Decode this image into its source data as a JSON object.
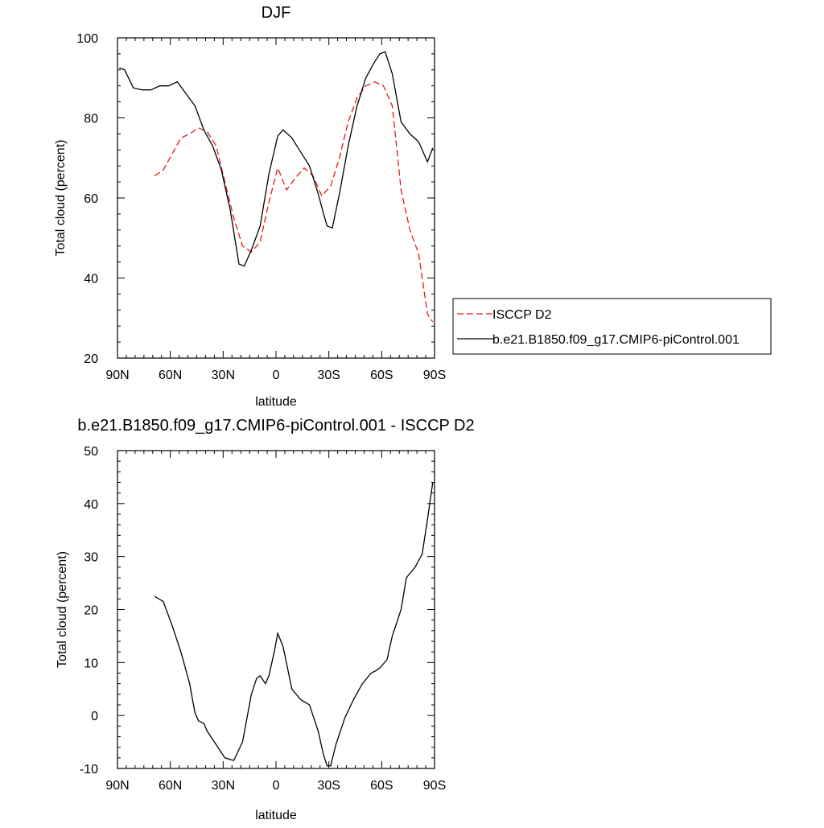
{
  "chart_data": [
    {
      "type": "line",
      "title": "DJF",
      "xlabel": "latitude",
      "ylabel": "Total cloud (percent)",
      "xlim": [
        -90,
        90
      ],
      "ylim": [
        20,
        100
      ],
      "x_ticks": [
        -90,
        -60,
        -30,
        0,
        30,
        60,
        90
      ],
      "x_tick_labels": [
        "90N",
        "60N",
        "30N",
        "0",
        "30S",
        "60S",
        "90S"
      ],
      "y_ticks": [
        20,
        40,
        60,
        80,
        100
      ],
      "y_tick_labels": [
        "20",
        "40",
        "60",
        "80",
        "100"
      ],
      "legend_position": "right",
      "series": [
        {
          "name": "ISCCP D2",
          "color": "#e41a1c",
          "dash": "dashed",
          "x": [
            -69,
            -64,
            -59,
            -54,
            -49,
            -44,
            -39,
            -34,
            -29,
            -24,
            -19,
            -14,
            -9,
            -4,
            1,
            6,
            11,
            16,
            21,
            26,
            31,
            36,
            41,
            46,
            51,
            56,
            61,
            66,
            71,
            76,
            81,
            86,
            89
          ],
          "y": [
            65.5,
            67,
            71,
            75,
            76,
            77.5,
            76.5,
            73,
            64,
            55,
            48,
            46.5,
            49,
            59,
            67.5,
            62,
            65,
            67.5,
            65.5,
            60.5,
            63,
            70,
            79,
            85,
            88,
            89,
            88,
            83,
            62,
            52,
            46,
            31,
            29
          ]
        },
        {
          "name": "b.e21.B1850.f09_g17.CMIP6-piControl.001",
          "color": "#000000",
          "dash": "solid",
          "x": [
            -89,
            -86,
            -81,
            -76,
            -71,
            -66,
            -61,
            -56,
            -51,
            -46,
            -41,
            -36,
            -31,
            -26,
            -21,
            -18,
            -14,
            -9,
            -4,
            1,
            4,
            9,
            14,
            19,
            24,
            27,
            29,
            32,
            36,
            41,
            46,
            51,
            56,
            59,
            62,
            66,
            71,
            76,
            81,
            86,
            89
          ],
          "y": [
            92.5,
            92,
            87.5,
            87,
            87,
            88,
            88,
            89,
            86,
            83,
            77,
            73,
            67,
            57,
            43.5,
            43,
            47,
            53,
            66,
            75.5,
            77,
            75,
            71.5,
            68,
            61,
            56,
            53,
            52.5,
            61,
            73,
            83,
            90,
            94,
            96,
            96.5,
            91,
            79,
            76,
            74,
            69,
            72.5
          ]
        }
      ]
    },
    {
      "type": "line",
      "title": "b.e21.B1850.f09_g17.CMIP6-piControl.001 - ISCCP D2",
      "xlabel": "latitude",
      "ylabel": "Total cloud (percent)",
      "xlim": [
        -90,
        90
      ],
      "ylim": [
        -10,
        50
      ],
      "x_ticks": [
        -90,
        -60,
        -30,
        0,
        30,
        60,
        90
      ],
      "x_tick_labels": [
        "90N",
        "60N",
        "30N",
        "0",
        "30S",
        "60S",
        "90S"
      ],
      "y_ticks": [
        -10,
        0,
        10,
        20,
        30,
        40,
        50
      ],
      "y_tick_labels": [
        "-10",
        "0",
        "10",
        "20",
        "30",
        "40",
        "50"
      ],
      "series": [
        {
          "color": "#000000",
          "dash": "solid",
          "x": [
            -69,
            -64,
            -59,
            -54,
            -49,
            -46,
            -44,
            -41,
            -39,
            -34,
            -29,
            -24,
            -19,
            -14,
            -11,
            -9,
            -6,
            -4,
            -1,
            1,
            4,
            9,
            14,
            19,
            24,
            27,
            29,
            31,
            34,
            39,
            44,
            49,
            54,
            57,
            59,
            63,
            66,
            71,
            74,
            79,
            83,
            86,
            89
          ],
          "y": [
            22.5,
            21.5,
            17,
            12,
            6,
            0.5,
            -1,
            -1.5,
            -3,
            -5.5,
            -8,
            -8.5,
            -5,
            4,
            7,
            7.5,
            6,
            7.5,
            12,
            15.5,
            13,
            5,
            3,
            2,
            -3,
            -7.5,
            -9.5,
            -9.5,
            -5.5,
            -0.5,
            3,
            6,
            8,
            8.5,
            9,
            10.5,
            15,
            20,
            26,
            28,
            30.5,
            37,
            44
          ]
        }
      ]
    }
  ]
}
